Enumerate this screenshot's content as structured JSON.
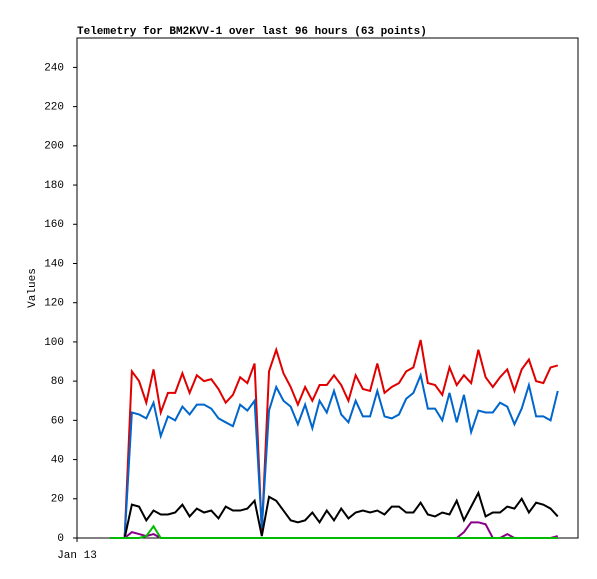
{
  "chart_data": {
    "type": "line",
    "title": "Telemetry for BM2KVV-1 over last 96 hours (63 points)",
    "y_label": "Values",
    "x": [
      0,
      1,
      2,
      3,
      4,
      5,
      6,
      7,
      8,
      9,
      10,
      11,
      12,
      13,
      14,
      15,
      16,
      17,
      18,
      19,
      20,
      21,
      22,
      23,
      24,
      25,
      26,
      27,
      28,
      29,
      30,
      31,
      32,
      33,
      34,
      35,
      36,
      37,
      38,
      39,
      40,
      41,
      42,
      43,
      44,
      45,
      46,
      47,
      48,
      49,
      50,
      51,
      52,
      53,
      54,
      55,
      56,
      57,
      58,
      59,
      60,
      61,
      62
    ],
    "xlim": [
      -4.6,
      64.8
    ],
    "xticks": [
      {
        "value": -4.6,
        "label": "Jan 13"
      }
    ],
    "ylim": [
      0,
      255
    ],
    "yticks": [
      0,
      20,
      40,
      60,
      80,
      100,
      120,
      140,
      160,
      180,
      200,
      220,
      240
    ],
    "series": [
      {
        "color": "#e00000",
        "values": [
          0,
          0,
          0,
          85,
          80,
          69,
          86,
          64,
          74,
          74,
          84,
          74,
          83,
          80,
          81,
          76,
          69,
          73,
          82,
          79,
          89,
          3,
          85,
          96,
          84,
          77,
          68,
          77,
          70,
          78,
          78,
          83,
          78,
          70,
          83,
          76,
          75,
          89,
          74,
          77,
          79,
          85,
          87,
          101,
          79,
          78,
          73,
          87,
          78,
          83,
          79,
          96,
          82,
          77,
          82,
          86,
          75,
          86,
          91,
          80,
          79,
          87,
          88
        ]
      },
      {
        "color": "#0066cc",
        "values": [
          0,
          0,
          0,
          64,
          63,
          61,
          69,
          52,
          62,
          60,
          67,
          63,
          68,
          68,
          66,
          61,
          59,
          57,
          68,
          65,
          70,
          5,
          65,
          77,
          70,
          67,
          58,
          68,
          56,
          70,
          64,
          75,
          63,
          59,
          70,
          62,
          62,
          75,
          62,
          61,
          63,
          71,
          74,
          83,
          66,
          66,
          60,
          74,
          59,
          73,
          54,
          65,
          64,
          64,
          69,
          67,
          58,
          66,
          78,
          62,
          62,
          60,
          75
        ]
      },
      {
        "color": "#000000",
        "values": [
          0,
          0,
          0,
          17,
          16,
          9,
          14,
          12,
          12,
          13,
          17,
          11,
          15,
          13,
          14,
          10,
          16,
          14,
          14,
          15,
          19,
          1,
          21,
          19,
          14,
          9,
          8,
          9,
          13,
          8,
          14,
          9,
          15,
          10,
          13,
          14,
          13,
          14,
          12,
          16,
          16,
          13,
          13,
          18,
          12,
          11,
          13,
          12,
          19,
          9,
          16,
          23,
          11,
          13,
          13,
          16,
          15,
          20,
          13,
          18,
          17,
          15,
          11
        ]
      },
      {
        "color": "#880088",
        "values": [
          0,
          0,
          0,
          3,
          2,
          1,
          2,
          0,
          0,
          0,
          0,
          0,
          0,
          0,
          0,
          0,
          0,
          0,
          0,
          0,
          0,
          0,
          0,
          0,
          0,
          0,
          0,
          0,
          0,
          0,
          0,
          0,
          0,
          0,
          0,
          0,
          0,
          0,
          0,
          0,
          0,
          0,
          0,
          0,
          0,
          0,
          0,
          0,
          0,
          3,
          8,
          8,
          7,
          0,
          0,
          2,
          0,
          0,
          0,
          0,
          0,
          0,
          1
        ]
      },
      {
        "color": "#00bb00",
        "values": [
          0,
          0,
          0,
          0,
          0,
          1,
          6,
          0,
          0,
          0,
          0,
          0,
          0,
          0,
          0,
          0,
          0,
          0,
          0,
          0,
          0,
          0,
          0,
          0,
          0,
          0,
          0,
          0,
          0,
          0,
          0,
          0,
          0,
          0,
          0,
          0,
          0,
          0,
          0,
          0,
          0,
          0,
          0,
          0,
          0,
          0,
          0,
          0,
          0,
          0,
          0,
          0,
          0,
          0,
          0,
          0,
          0,
          0,
          0,
          0,
          0,
          0,
          0
        ]
      }
    ]
  }
}
